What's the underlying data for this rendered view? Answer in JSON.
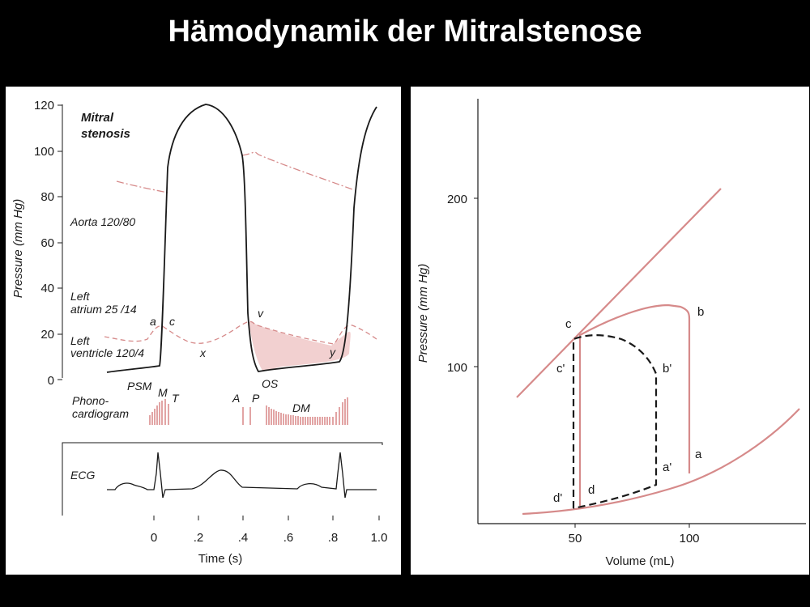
{
  "slide": {
    "title": "Hämodynamik der Mitralstenose"
  },
  "colors": {
    "background": "#000000",
    "pink": "#d68a8a",
    "curve": "#1a1a1a",
    "shade": "#f0c8c8"
  },
  "left_chart": {
    "heading_line1": "Mitral",
    "heading_line2": "stenosis",
    "ylabel": "Pressure (mm Hg)",
    "xlabel": "Time (s)",
    "y_ticks": [
      "120",
      "100",
      "80",
      "60",
      "40",
      "20",
      "0"
    ],
    "x_ticks": [
      "0",
      ".2",
      ".4",
      ".6",
      ".8",
      "1.0"
    ],
    "aorta_label": "Aorta 120/80",
    "la_label_1": "Left",
    "la_label_2": "atrium 25 /14",
    "lv_label_1": "Left",
    "lv_label_2": "ventricle 120/4",
    "wave_a": "a",
    "wave_c": "c",
    "wave_x": "x",
    "wave_v": "v",
    "wave_y": "y",
    "os_label": "OS",
    "psm_label": "PSM",
    "m_label": "M",
    "t_label": "T",
    "a2_label": "A",
    "p2_label": "P",
    "dm_label": "DM",
    "phono_label_1": "Phono-",
    "phono_label_2": "cardiogram",
    "ecg_label": "ECG"
  },
  "right_chart": {
    "ylabel": "Pressure (mm Hg)",
    "xlabel": "Volume (mL)",
    "y_ticks": [
      "200",
      "100"
    ],
    "x_ticks": [
      "50",
      "100"
    ],
    "point_labels": {
      "a": "a",
      "b": "b",
      "c": "c",
      "d": "d",
      "a_prime": "a'",
      "b_prime": "b'",
      "c_prime": "c'",
      "d_prime": "d'"
    }
  }
}
